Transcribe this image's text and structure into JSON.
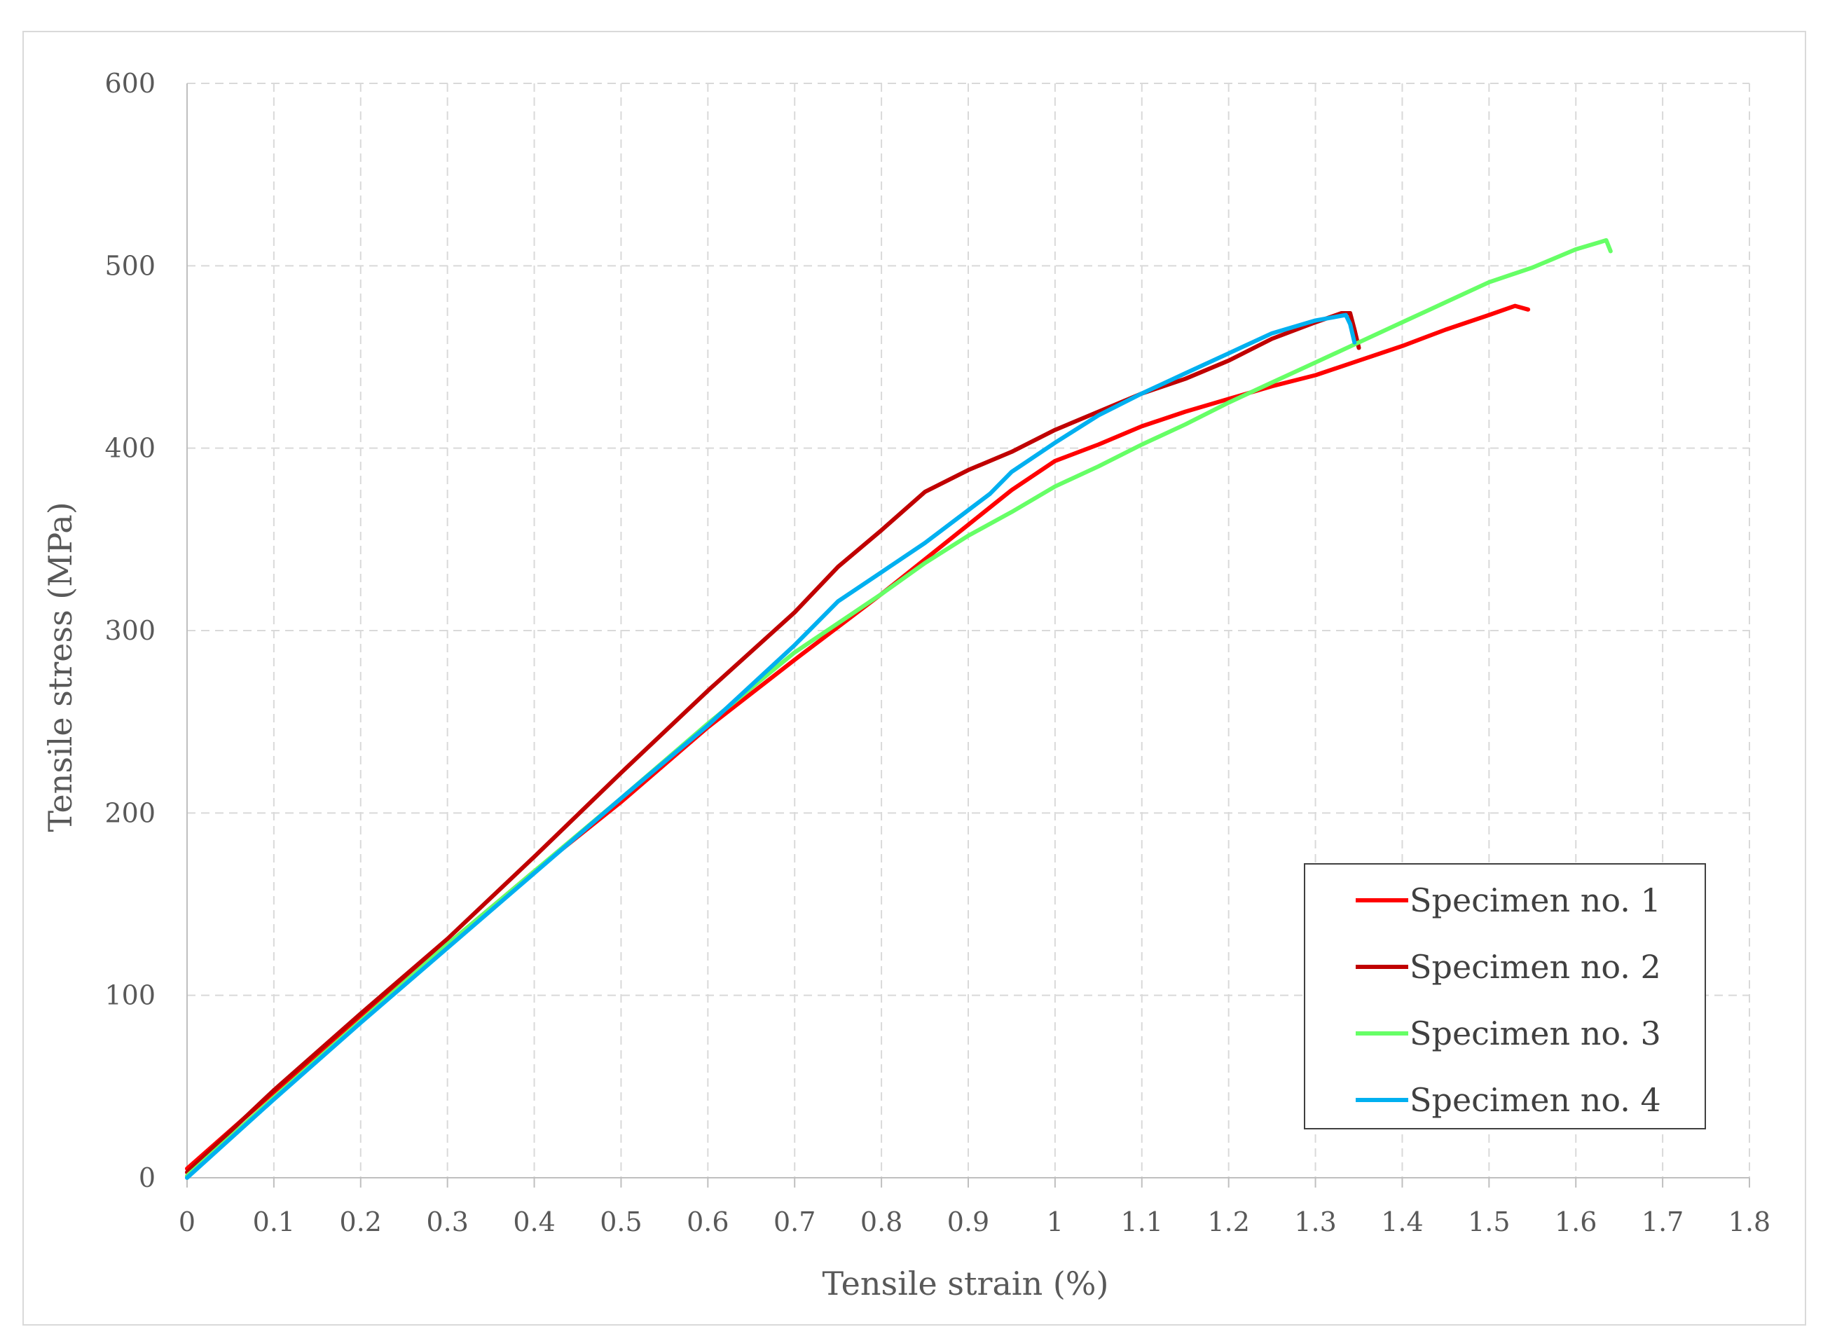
{
  "chart_data": {
    "type": "line",
    "title": "",
    "xlabel": "Tensile strain (%)",
    "ylabel": "Tensile stress (MPa)",
    "xlim": [
      0,
      1.8
    ],
    "ylim": [
      0,
      600
    ],
    "x_ticks": [
      "0",
      "0.1",
      "0.2",
      "0.3",
      "0.4",
      "0.5",
      "0.6",
      "0.7",
      "0.8",
      "0.9",
      "1",
      "1.1",
      "1.2",
      "1.3",
      "1.4",
      "1.5",
      "1.6",
      "1.7",
      "1.8"
    ],
    "y_ticks": [
      "0",
      "100",
      "200",
      "300",
      "400",
      "500",
      "600"
    ],
    "grid": true,
    "legend_position": "bottom-right",
    "series": [
      {
        "name": "Specimen no. 1",
        "color": "#ff0000",
        "points": [
          [
            0,
            5
          ],
          [
            0.1,
            47
          ],
          [
            0.2,
            88
          ],
          [
            0.3,
            128
          ],
          [
            0.4,
            168
          ],
          [
            0.5,
            206
          ],
          [
            0.6,
            247
          ],
          [
            0.7,
            284
          ],
          [
            0.8,
            320
          ],
          [
            0.9,
            358
          ],
          [
            0.95,
            377
          ],
          [
            1.0,
            393
          ],
          [
            1.05,
            402
          ],
          [
            1.1,
            412
          ],
          [
            1.15,
            420
          ],
          [
            1.2,
            427
          ],
          [
            1.25,
            434
          ],
          [
            1.3,
            440
          ],
          [
            1.35,
            448
          ],
          [
            1.4,
            456
          ],
          [
            1.45,
            465
          ],
          [
            1.5,
            473
          ],
          [
            1.53,
            478
          ],
          [
            1.545,
            476
          ]
        ]
      },
      {
        "name": "Specimen no. 2",
        "color": "#c00000",
        "points": [
          [
            0,
            3
          ],
          [
            0.1,
            48
          ],
          [
            0.2,
            90
          ],
          [
            0.3,
            131
          ],
          [
            0.4,
            176
          ],
          [
            0.5,
            222
          ],
          [
            0.6,
            267
          ],
          [
            0.7,
            310
          ],
          [
            0.75,
            335
          ],
          [
            0.8,
            355
          ],
          [
            0.85,
            376
          ],
          [
            0.9,
            388
          ],
          [
            0.95,
            398
          ],
          [
            1.0,
            410
          ],
          [
            1.05,
            420
          ],
          [
            1.1,
            430
          ],
          [
            1.15,
            438
          ],
          [
            1.2,
            448
          ],
          [
            1.25,
            460
          ],
          [
            1.3,
            469
          ],
          [
            1.33,
            474
          ],
          [
            1.34,
            474
          ],
          [
            1.345,
            465
          ],
          [
            1.35,
            455
          ]
        ]
      },
      {
        "name": "Specimen no. 3",
        "color": "#66ff66",
        "points": [
          [
            0,
            1
          ],
          [
            0.1,
            44
          ],
          [
            0.2,
            86
          ],
          [
            0.3,
            128
          ],
          [
            0.4,
            168
          ],
          [
            0.5,
            208
          ],
          [
            0.6,
            249
          ],
          [
            0.7,
            288
          ],
          [
            0.8,
            320
          ],
          [
            0.85,
            337
          ],
          [
            0.9,
            352
          ],
          [
            0.95,
            365
          ],
          [
            1.0,
            379
          ],
          [
            1.05,
            390
          ],
          [
            1.1,
            402
          ],
          [
            1.15,
            413
          ],
          [
            1.2,
            425
          ],
          [
            1.25,
            436
          ],
          [
            1.3,
            447
          ],
          [
            1.35,
            458
          ],
          [
            1.4,
            469
          ],
          [
            1.45,
            480
          ],
          [
            1.5,
            491
          ],
          [
            1.55,
            499
          ],
          [
            1.6,
            509
          ],
          [
            1.635,
            514
          ],
          [
            1.64,
            508
          ]
        ]
      },
      {
        "name": "Specimen no. 4",
        "color": "#00b0f0",
        "points": [
          [
            0,
            0
          ],
          [
            0.1,
            43
          ],
          [
            0.2,
            85
          ],
          [
            0.3,
            126
          ],
          [
            0.4,
            167
          ],
          [
            0.5,
            208
          ],
          [
            0.6,
            248
          ],
          [
            0.7,
            292
          ],
          [
            0.75,
            316
          ],
          [
            0.8,
            332
          ],
          [
            0.85,
            348
          ],
          [
            0.9,
            366
          ],
          [
            0.925,
            375
          ],
          [
            0.95,
            387
          ],
          [
            1.0,
            403
          ],
          [
            1.05,
            418
          ],
          [
            1.1,
            430
          ],
          [
            1.15,
            441
          ],
          [
            1.2,
            452
          ],
          [
            1.25,
            463
          ],
          [
            1.3,
            470
          ],
          [
            1.335,
            473
          ],
          [
            1.34,
            468
          ],
          [
            1.345,
            458
          ]
        ]
      }
    ]
  }
}
